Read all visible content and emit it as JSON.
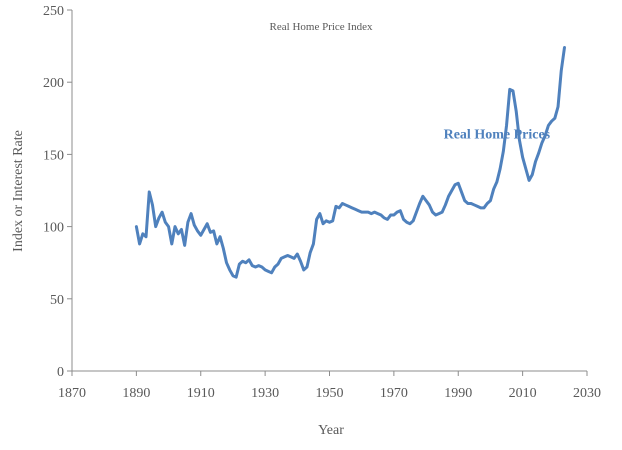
{
  "chart_data": {
    "type": "line",
    "title": "Real Home Price Index",
    "xlabel": "Year",
    "ylabel": "Index or Interest Rate",
    "xlim": [
      1870,
      2030
    ],
    "ylim": [
      0,
      250
    ],
    "xticks": [
      1870,
      1890,
      1910,
      1930,
      1950,
      1970,
      1990,
      2010,
      2030
    ],
    "yticks": [
      0,
      50,
      100,
      150,
      200,
      250
    ],
    "grid": false,
    "series": [
      {
        "name": "Real Home Prices",
        "color": "#4f81bd",
        "x": [
          1890,
          1891,
          1892,
          1893,
          1894,
          1895,
          1896,
          1897,
          1898,
          1899,
          1900,
          1901,
          1902,
          1903,
          1904,
          1905,
          1906,
          1907,
          1908,
          1909,
          1910,
          1911,
          1912,
          1913,
          1914,
          1915,
          1916,
          1917,
          1918,
          1919,
          1920,
          1921,
          1922,
          1923,
          1924,
          1925,
          1926,
          1927,
          1928,
          1929,
          1930,
          1931,
          1932,
          1933,
          1934,
          1935,
          1936,
          1937,
          1938,
          1939,
          1940,
          1941,
          1942,
          1943,
          1944,
          1945,
          1946,
          1947,
          1948,
          1949,
          1950,
          1951,
          1952,
          1953,
          1954,
          1955,
          1956,
          1957,
          1958,
          1959,
          1960,
          1961,
          1962,
          1963,
          1964,
          1965,
          1966,
          1967,
          1968,
          1969,
          1970,
          1971,
          1972,
          1973,
          1974,
          1975,
          1976,
          1977,
          1978,
          1979,
          1980,
          1981,
          1982,
          1983,
          1984,
          1985,
          1986,
          1987,
          1988,
          1989,
          1990,
          1991,
          1992,
          1993,
          1994,
          1995,
          1996,
          1997,
          1998,
          1999,
          2000,
          2001,
          2002,
          2003,
          2004,
          2005,
          2006,
          2007,
          2008,
          2009,
          2010,
          2011,
          2012,
          2013,
          2014,
          2015,
          2016,
          2017,
          2018,
          2019,
          2020,
          2021,
          2022,
          2023
        ],
        "values": [
          100,
          88,
          95,
          93,
          124,
          115,
          100,
          106,
          110,
          103,
          100,
          88,
          100,
          95,
          98,
          87,
          103,
          109,
          101,
          97,
          94,
          98,
          102,
          96,
          97,
          88,
          93,
          85,
          75,
          70,
          66,
          65,
          74,
          76,
          75,
          77,
          73,
          72,
          73,
          72,
          70,
          69,
          68,
          72,
          74,
          78,
          79,
          80,
          79,
          78,
          81,
          76,
          70,
          72,
          82,
          88,
          105,
          109,
          102,
          104,
          103,
          104,
          114,
          113,
          116,
          115,
          114,
          113,
          112,
          111,
          110,
          110,
          110,
          109,
          110,
          109,
          108,
          106,
          105,
          108,
          108,
          110,
          111,
          105,
          103,
          102,
          104,
          110,
          116,
          121,
          118,
          115,
          110,
          108,
          109,
          110,
          115,
          121,
          125,
          129,
          130,
          124,
          118,
          116,
          116,
          115,
          114,
          113,
          113,
          116,
          118,
          126,
          131,
          140,
          152,
          170,
          195,
          194,
          180,
          160,
          148,
          140,
          132,
          136,
          145,
          151,
          158,
          163,
          170,
          173,
          175,
          183,
          208,
          224
        ]
      }
    ],
    "annotations": [
      {
        "text": "Real Home Prices",
        "x": 2002,
        "y": 161,
        "color": "#4f81bd"
      }
    ]
  }
}
